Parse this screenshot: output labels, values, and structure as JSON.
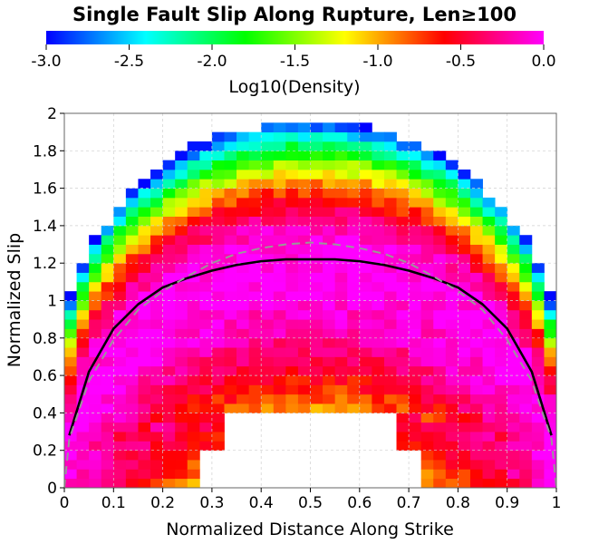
{
  "chart_data": {
    "type": "heatmap",
    "title": "Single Fault Slip Along Rupture, Len≥100",
    "xlabel": "Normalized Distance Along Strike",
    "ylabel": "Normalized Slip",
    "xlim": [
      0,
      1
    ],
    "ylim": [
      0,
      2
    ],
    "x_ticks": [
      "0",
      "0.1",
      "0.2",
      "0.3",
      "0.4",
      "0.5",
      "0.6",
      "0.7",
      "0.8",
      "0.9",
      "1"
    ],
    "y_ticks": [
      "0",
      "0.2",
      "0.4",
      "0.6",
      "0.8",
      "1",
      "1.2",
      "1.4",
      "1.6",
      "1.8",
      "2"
    ],
    "grid": true,
    "colorbar": {
      "label": "Log10(Density)",
      "range": [
        -3.0,
        0.0
      ],
      "ticks": [
        "-3.0",
        "-2.5",
        "-2.0",
        "-1.5",
        "-1.0",
        "-0.5",
        "0.0"
      ],
      "colors": [
        "#0000ff",
        "#00ffff",
        "#00ff00",
        "#ffff00",
        "#ff0000",
        "#ff00ff"
      ]
    },
    "bins": {
      "nx": 40,
      "ny": 40
    },
    "series": [
      {
        "type": "line",
        "style": "solid",
        "color": "#000000",
        "x": [
          0.01,
          0.05,
          0.1,
          0.15,
          0.2,
          0.25,
          0.3,
          0.35,
          0.4,
          0.45,
          0.5,
          0.55,
          0.6,
          0.65,
          0.7,
          0.75,
          0.8,
          0.85,
          0.9,
          0.95,
          0.99
        ],
        "y": [
          0.28,
          0.62,
          0.85,
          0.98,
          1.07,
          1.12,
          1.16,
          1.19,
          1.21,
          1.22,
          1.22,
          1.22,
          1.21,
          1.19,
          1.16,
          1.12,
          1.07,
          0.98,
          0.85,
          0.62,
          0.28
        ]
      },
      {
        "type": "line",
        "style": "dashed",
        "color": "#999999",
        "x": [
          0.0,
          0.01,
          0.05,
          0.1,
          0.15,
          0.2,
          0.25,
          0.3,
          0.35,
          0.4,
          0.45,
          0.5,
          0.55,
          0.6,
          0.65,
          0.7,
          0.75,
          0.8,
          0.85,
          0.9,
          0.95,
          0.99,
          1.0
        ],
        "y": [
          0.0,
          0.26,
          0.57,
          0.79,
          0.95,
          1.05,
          1.13,
          1.2,
          1.25,
          1.28,
          1.3,
          1.31,
          1.3,
          1.28,
          1.25,
          1.2,
          1.13,
          1.05,
          0.95,
          0.79,
          0.57,
          0.26,
          0.0
        ]
      }
    ]
  }
}
